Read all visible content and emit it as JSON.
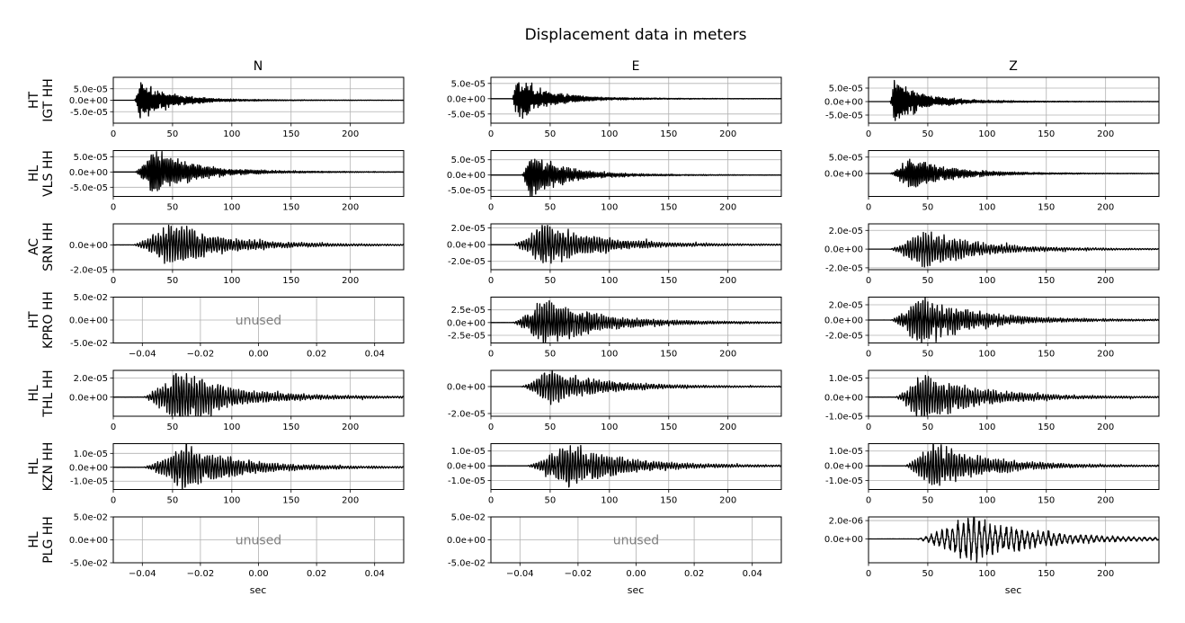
{
  "chart_data": {
    "type": "line",
    "title": "Displacement data in meters",
    "columns": [
      "N",
      "E",
      "Z"
    ],
    "xlabel": "sec",
    "unused_label": "unused",
    "time_axis": {
      "xlim": [
        0,
        245
      ],
      "ticks": [
        0,
        50,
        100,
        150,
        200
      ]
    },
    "unused_axis": {
      "xlim": [
        -0.05,
        0.05
      ],
      "xticks": [
        -0.04,
        -0.02,
        0.0,
        0.02,
        0.04
      ],
      "xtick_labels": [
        "−0.04",
        "−0.02",
        "0.00",
        "0.02",
        "0.04"
      ],
      "ylim": [
        -0.05,
        0.05
      ],
      "ytick_labels": [
        "5.0e-02",
        "0.0e+00",
        "-5.0e-02"
      ]
    },
    "rows": [
      {
        "name": "HT\nIGT HH",
        "channels": [
          {
            "ylim": [
              -0.0001,
              0.0001
            ],
            "yticks": [
              5e-05,
              0,
              -5e-05
            ],
            "ytick_labels": [
              "5.0e-05",
              "0.0e+00",
              "-5.0e-05"
            ],
            "onset": 18,
            "peak_t": 22,
            "amp": 8.5e-05,
            "decay": 22,
            "period": 1.2
          },
          {
            "ylim": [
              -8e-05,
              7e-05
            ],
            "yticks": [
              5e-05,
              0,
              -5e-05
            ],
            "ytick_labels": [
              "5.0e-05",
              "0.0e+00",
              "-5.0e-05"
            ],
            "onset": 18,
            "peak_t": 22,
            "amp": 7e-05,
            "decay": 22,
            "period": 1.2
          },
          {
            "ylim": [
              -8e-05,
              9e-05
            ],
            "yticks": [
              5e-05,
              0,
              -5e-05
            ],
            "ytick_labels": [
              "5.0e-05",
              "0.0e+00",
              "-5.0e-05"
            ],
            "onset": 18,
            "peak_t": 22,
            "amp": 8e-05,
            "decay": 22,
            "period": 1.2
          }
        ]
      },
      {
        "name": "HL\nVLS HH",
        "channels": [
          {
            "ylim": [
              -8e-05,
              7e-05
            ],
            "yticks": [
              5e-05,
              0,
              -5e-05
            ],
            "ytick_labels": [
              "5.0e-05",
              "0.0e+00",
              "-5.0e-05"
            ],
            "onset": 18,
            "peak_t": 35,
            "amp": 7e-05,
            "decay": 30,
            "period": 1.5
          },
          {
            "ylim": [
              -7e-05,
              8e-05
            ],
            "yticks": [
              5e-05,
              0,
              -5e-05
            ],
            "ytick_labels": [
              "5.0e-05",
              "0.0e+00",
              "-5.0e-05"
            ],
            "onset": 26,
            "peak_t": 33,
            "amp": 7e-05,
            "decay": 25,
            "period": 1.5
          },
          {
            "ylim": [
              -7e-05,
              7e-05
            ],
            "yticks": [
              5e-05,
              0
            ],
            "ytick_labels": [
              "5.0e-05",
              "0.0e+00"
            ],
            "onset": 18,
            "peak_t": 35,
            "amp": 5e-05,
            "decay": 30,
            "period": 1.5
          }
        ]
      },
      {
        "name": "AC\nSRN HH",
        "channels": [
          {
            "ylim": [
              -2e-05,
              1.7e-05
            ],
            "yticks": [
              0,
              -2e-05
            ],
            "ytick_labels": [
              "0.0e+00",
              "-2.0e-05"
            ],
            "onset": 16,
            "peak_t": 50,
            "amp": 1.7e-05,
            "decay": 40,
            "period": 2.2
          },
          {
            "ylim": [
              -3e-05,
              2.5e-05
            ],
            "yticks": [
              2e-05,
              0,
              -2e-05
            ],
            "ytick_labels": [
              "2.0e-05",
              "0.0e+00",
              "-2.0e-05"
            ],
            "onset": 18,
            "peak_t": 45,
            "amp": 2.5e-05,
            "decay": 40,
            "period": 2.2
          },
          {
            "ylim": [
              -2.2e-05,
              2.7e-05
            ],
            "yticks": [
              2e-05,
              0,
              -2e-05
            ],
            "ytick_labels": [
              "2.0e-05",
              "0.0e+00",
              "-2.0e-05"
            ],
            "onset": 18,
            "peak_t": 45,
            "amp": 2e-05,
            "decay": 40,
            "period": 2.2
          }
        ]
      },
      {
        "name": "HT\nKPRO HH",
        "channels": [
          {
            "unused": true
          },
          {
            "ylim": [
              -4e-05,
              5e-05
            ],
            "yticks": [
              2.5e-05,
              0,
              -2.5e-05
            ],
            "ytick_labels": [
              "2.5e-05",
              "0.0e+00",
              "-2.5e-05"
            ],
            "onset": 18,
            "peak_t": 45,
            "amp": 4.5e-05,
            "decay": 40,
            "period": 2.0
          },
          {
            "ylim": [
              -3e-05,
              3e-05
            ],
            "yticks": [
              2e-05,
              0,
              -2e-05
            ],
            "ytick_labels": [
              "2.0e-05",
              "0.0e+00",
              "-2.0e-05"
            ],
            "onset": 18,
            "peak_t": 45,
            "amp": 3e-05,
            "decay": 40,
            "period": 2.0
          }
        ]
      },
      {
        "name": "HL\nTHL HH",
        "channels": [
          {
            "ylim": [
              -2e-05,
              2.8e-05
            ],
            "yticks": [
              2e-05,
              0
            ],
            "ytick_labels": [
              "2.0e-05",
              "0.0e+00"
            ],
            "onset": 25,
            "peak_t": 55,
            "amp": 2.8e-05,
            "decay": 40,
            "period": 2.2
          },
          {
            "ylim": [
              -2.2e-05,
              1.2e-05
            ],
            "yticks": [
              0,
              -2e-05
            ],
            "ytick_labels": [
              "0.0e+00",
              "-2.0e-05"
            ],
            "onset": 25,
            "peak_t": 50,
            "amp": 1.2e-05,
            "decay": 40,
            "period": 2.2
          },
          {
            "ylim": [
              -1e-05,
              1.4e-05
            ],
            "yticks": [
              1e-05,
              0,
              -1e-05
            ],
            "ytick_labels": [
              "1.0e-05",
              "0.0e+00",
              "-1.0e-05"
            ],
            "onset": 22,
            "peak_t": 45,
            "amp": 1.3e-05,
            "decay": 40,
            "period": 2.2
          }
        ]
      },
      {
        "name": "HL\nKZN HH",
        "channels": [
          {
            "ylim": [
              -1.6e-05,
              1.7e-05
            ],
            "yticks": [
              1e-05,
              0,
              -1e-05
            ],
            "ytick_labels": [
              "1.0e-05",
              "0.0e+00",
              "-1.0e-05"
            ],
            "onset": 25,
            "peak_t": 60,
            "amp": 1.6e-05,
            "decay": 40,
            "period": 2.2
          },
          {
            "ylim": [
              -1.6e-05,
              1.5e-05
            ],
            "yticks": [
              1e-05,
              0,
              -1e-05
            ],
            "ytick_labels": [
              "1.0e-05",
              "0.0e+00",
              "-1.0e-05"
            ],
            "onset": 30,
            "peak_t": 65,
            "amp": 1.5e-05,
            "decay": 40,
            "period": 2.2
          },
          {
            "ylim": [
              -1.6e-05,
              1.5e-05
            ],
            "yticks": [
              1e-05,
              0,
              -1e-05
            ],
            "ytick_labels": [
              "1.0e-05",
              "0.0e+00",
              "-1.0e-05"
            ],
            "onset": 30,
            "peak_t": 55,
            "amp": 1.5e-05,
            "decay": 40,
            "period": 2.2
          }
        ]
      },
      {
        "name": "HL\nPLG HH",
        "channels": [
          {
            "unused": true
          },
          {
            "unused": true
          },
          {
            "ylim": [
              -2.6e-06,
              2.4e-06
            ],
            "yticks": [
              2e-06,
              0
            ],
            "ytick_labels": [
              "2.0e-06",
              "0.0e+00"
            ],
            "onset": 40,
            "peak_t": 85,
            "amp": 2.4e-06,
            "decay": 50,
            "period": 4.5
          }
        ]
      }
    ]
  }
}
